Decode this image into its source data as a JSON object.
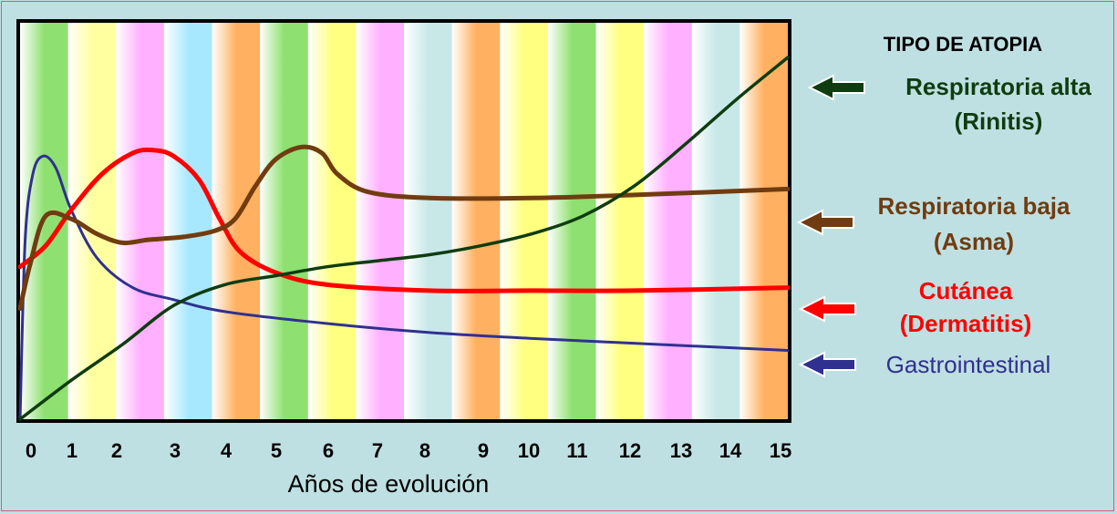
{
  "chart_data": {
    "type": "line",
    "title": "",
    "xlabel": "Años de evolución",
    "ylabel": "",
    "xlim": [
      0,
      15
    ],
    "x_ticks": [
      "0",
      "1",
      "2",
      "3",
      "4",
      "5",
      "6",
      "7",
      "8",
      "9",
      "10",
      "11",
      "12",
      "13",
      "14",
      "15"
    ],
    "grid": false,
    "legend_title": "TIPO DE ATOPIA",
    "legend_position": "right",
    "background_bands": [
      "#8ee070",
      "#ffffa0",
      "#ffb0ff",
      "#a8e8ff",
      "#ffb060",
      "#8ee070",
      "#ffff80",
      "#ffb0ff",
      "#c8e8e8",
      "#ffb060",
      "#ffff80",
      "#8ee070",
      "#ffff80",
      "#ffb0ff",
      "#c8e8e8",
      "#ffb060"
    ],
    "series": [
      {
        "key": "gastro",
        "color": "#303090",
        "legend": [
          "Gastrointestinal"
        ],
        "points": [
          [
            0,
            0.0
          ],
          [
            0.1,
            0.6
          ],
          [
            0.25,
            0.82
          ],
          [
            0.45,
            0.88
          ],
          [
            0.7,
            0.84
          ],
          [
            1.0,
            0.7
          ],
          [
            1.5,
            0.54
          ],
          [
            2.2,
            0.44
          ],
          [
            3.0,
            0.4
          ],
          [
            4.0,
            0.36
          ],
          [
            6.0,
            0.32
          ],
          [
            8.0,
            0.29
          ],
          [
            10.0,
            0.27
          ],
          [
            12.5,
            0.25
          ],
          [
            15.0,
            0.23
          ]
        ]
      },
      {
        "key": "cutanea",
        "color": "#ff0000",
        "legend": [
          "Cutánea",
          "(Dermatitis)"
        ],
        "points": [
          [
            0,
            0.51
          ],
          [
            0.5,
            0.58
          ],
          [
            1.0,
            0.7
          ],
          [
            1.6,
            0.82
          ],
          [
            2.2,
            0.89
          ],
          [
            2.6,
            0.9
          ],
          [
            3.0,
            0.88
          ],
          [
            3.5,
            0.8
          ],
          [
            3.9,
            0.67
          ],
          [
            4.3,
            0.56
          ],
          [
            5.0,
            0.49
          ],
          [
            6.0,
            0.45
          ],
          [
            8.0,
            0.43
          ],
          [
            10.0,
            0.43
          ],
          [
            12.0,
            0.43
          ],
          [
            15.0,
            0.44
          ]
        ]
      },
      {
        "key": "asma",
        "color": "#703c10",
        "legend": [
          "Respiratoria baja",
          "(Asma)"
        ],
        "points": [
          [
            0,
            0.37
          ],
          [
            0.2,
            0.52
          ],
          [
            0.5,
            0.68
          ],
          [
            1.0,
            0.67
          ],
          [
            1.5,
            0.62
          ],
          [
            2.0,
            0.59
          ],
          [
            2.5,
            0.6
          ],
          [
            3.2,
            0.61
          ],
          [
            3.8,
            0.63
          ],
          [
            4.2,
            0.67
          ],
          [
            4.6,
            0.78
          ],
          [
            5.0,
            0.87
          ],
          [
            5.5,
            0.91
          ],
          [
            5.9,
            0.89
          ],
          [
            6.2,
            0.82
          ],
          [
            6.8,
            0.76
          ],
          [
            8.0,
            0.74
          ],
          [
            10.0,
            0.74
          ],
          [
            12.0,
            0.75
          ],
          [
            15.0,
            0.77
          ]
        ]
      },
      {
        "key": "rinitis",
        "color": "#0f3c10",
        "legend": [
          "Respiratoria alta",
          "(Rinitis)"
        ],
        "points": [
          [
            0,
            0.0
          ],
          [
            1.0,
            0.13
          ],
          [
            2.0,
            0.25
          ],
          [
            3.0,
            0.38
          ],
          [
            4.0,
            0.45
          ],
          [
            5.0,
            0.48
          ],
          [
            6.0,
            0.51
          ],
          [
            7.0,
            0.53
          ],
          [
            8.0,
            0.55
          ],
          [
            9.0,
            0.58
          ],
          [
            10.0,
            0.62
          ],
          [
            11.0,
            0.68
          ],
          [
            12.0,
            0.78
          ],
          [
            13.0,
            0.92
          ],
          [
            14.0,
            1.07
          ],
          [
            15.0,
            1.21
          ]
        ]
      }
    ]
  }
}
